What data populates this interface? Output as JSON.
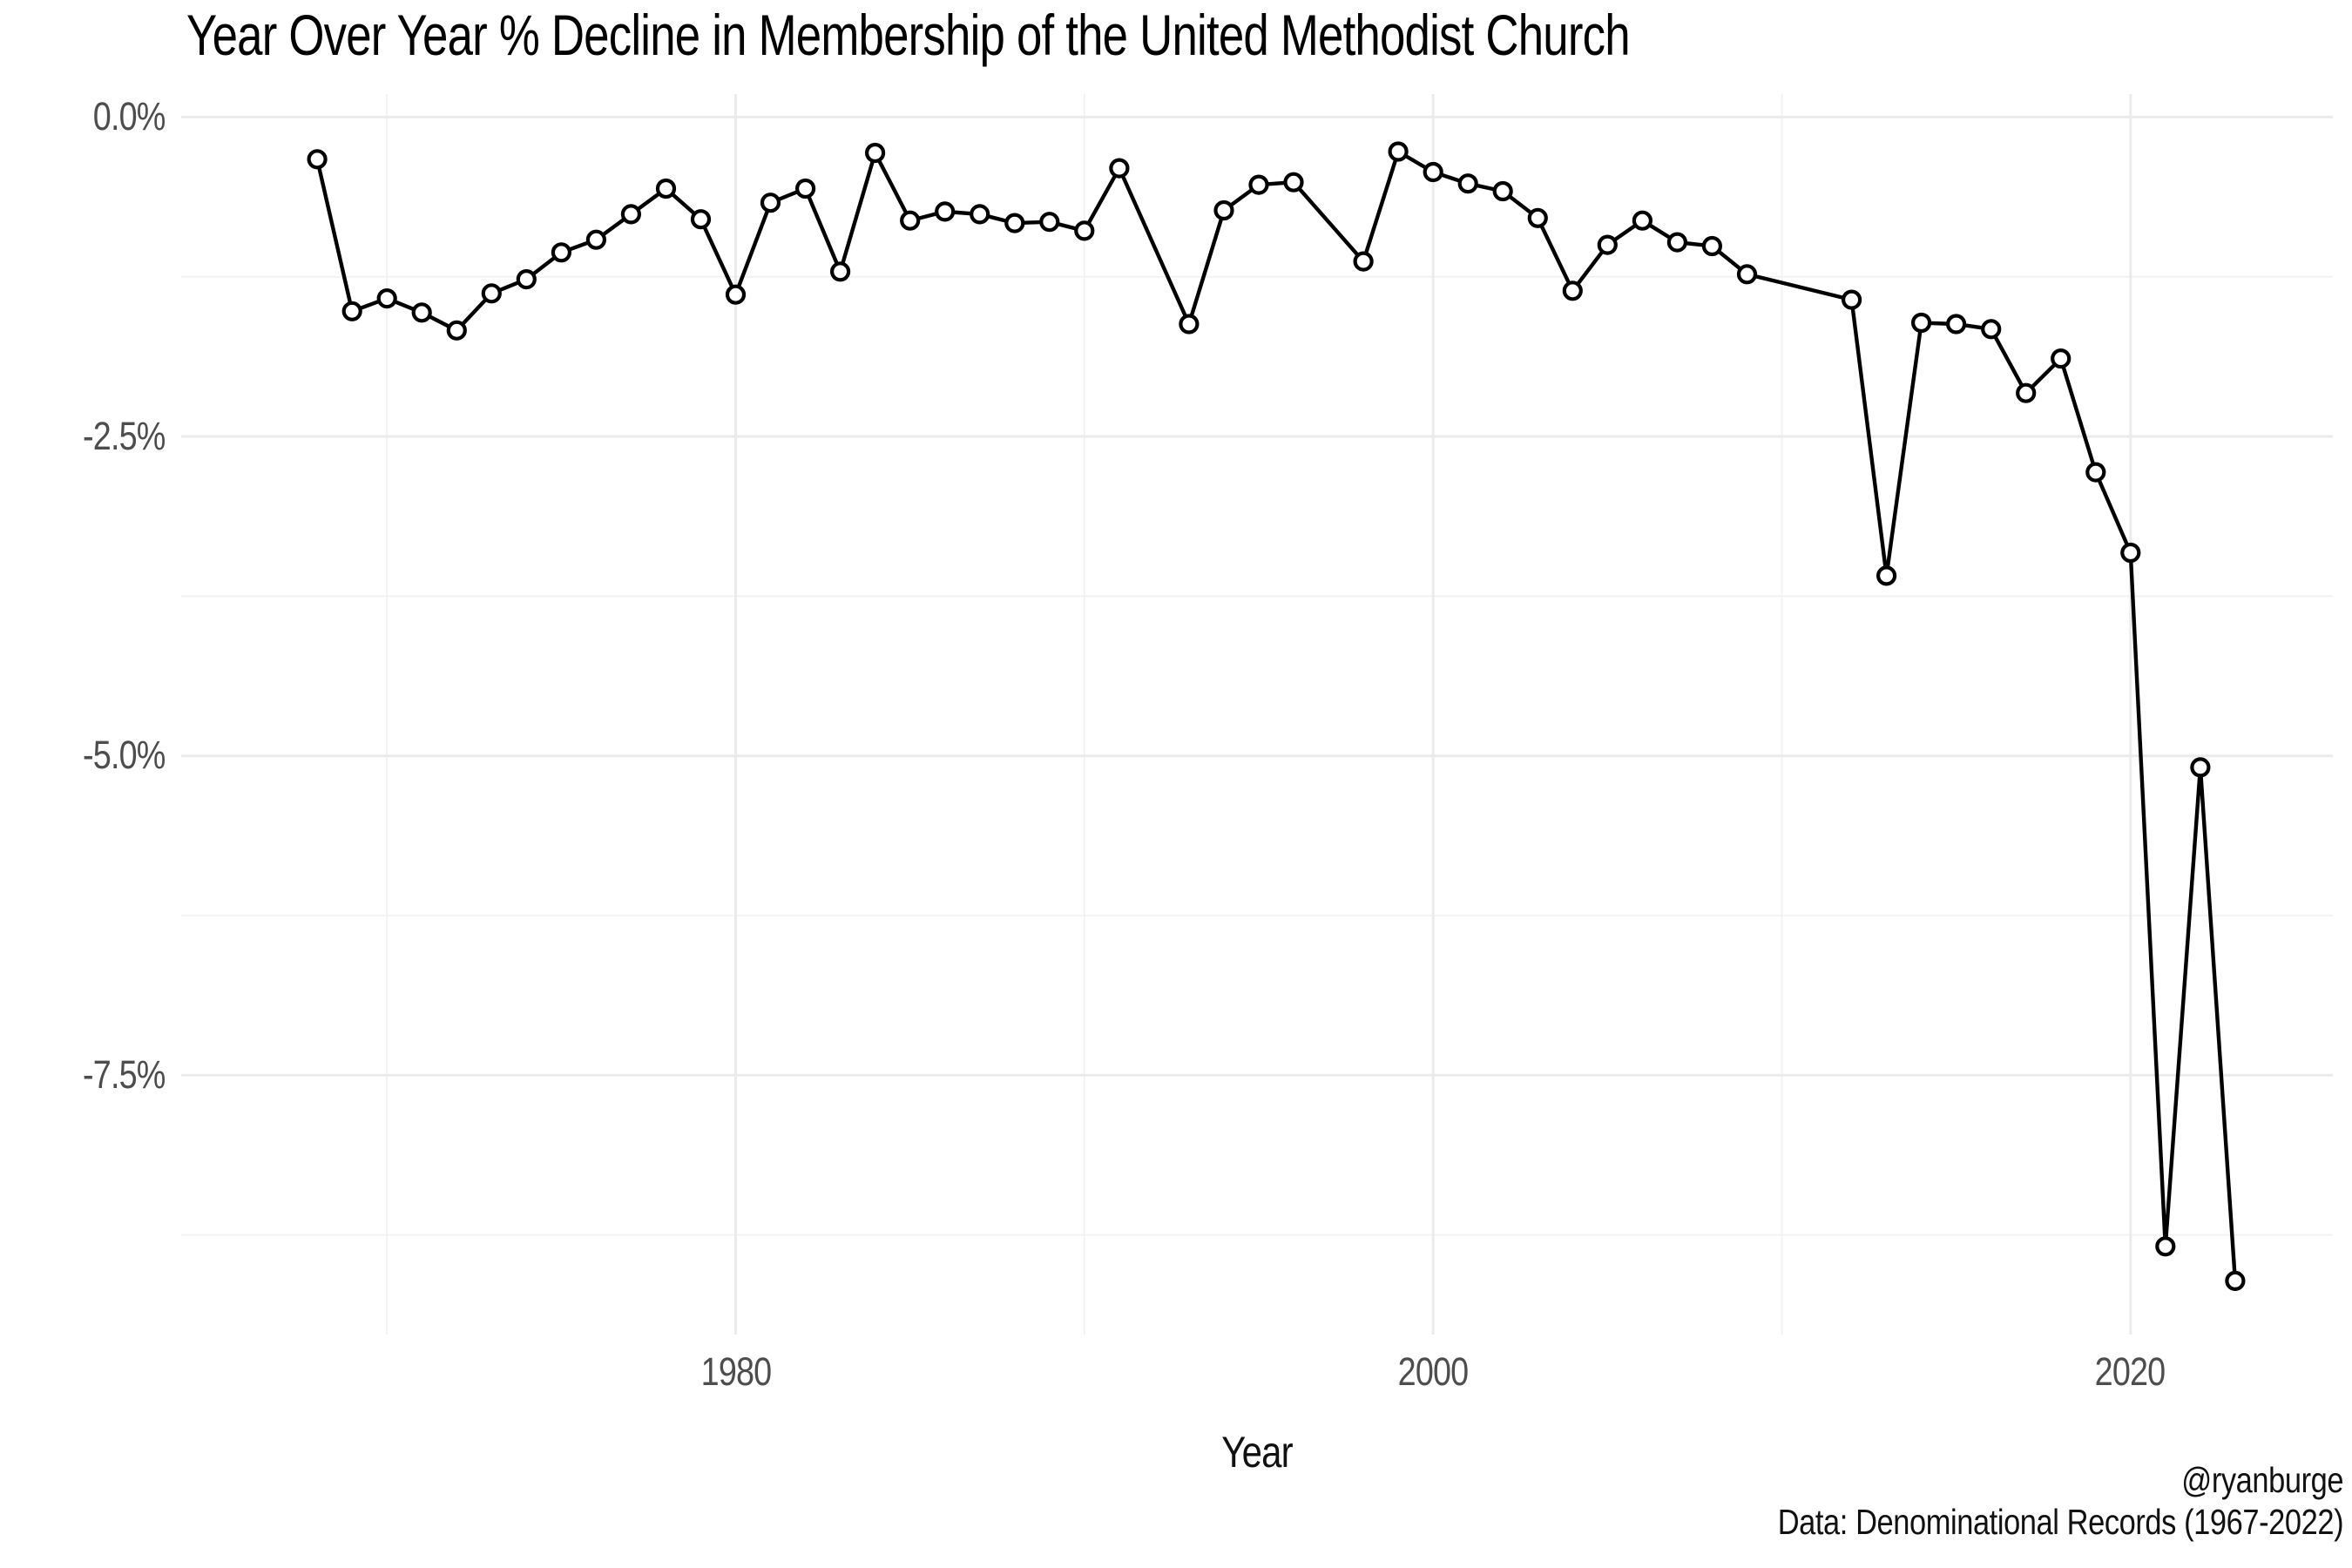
{
  "chart_data": {
    "type": "line",
    "title": "Year Over Year % Decline in Membership of the United Methodist Church",
    "x_axis": {
      "label": "Year",
      "tick_labels": [
        "1980",
        "2000",
        "2020"
      ],
      "tick_values": [
        1980,
        2000,
        2020
      ],
      "minor_tick_values": [
        1970,
        1990,
        2010
      ],
      "domain": [
        1964.1,
        2025.8
      ]
    },
    "y_axis": {
      "label": "",
      "tick_labels": [
        "0.0%",
        "-2.5%",
        "-5.0%",
        "-7.5%"
      ],
      "tick_values": [
        0,
        -2.5,
        -5.0,
        -7.5
      ],
      "minor_tick_values": [
        -1.25,
        -3.75,
        -6.25,
        -8.75
      ],
      "domain": [
        0.18,
        -9.53
      ]
    },
    "grid": "major+minor",
    "legend": false,
    "point_format": [
      "year",
      "yoy_percent_change"
    ],
    "series": [
      {
        "name": "United Methodist Church membership, year-over-year % change",
        "points": [
          [
            1968,
            -0.33
          ],
          [
            1969,
            -1.52
          ],
          [
            1970,
            -1.42
          ],
          [
            1971,
            -1.53
          ],
          [
            1972,
            -1.67
          ],
          [
            1973,
            -1.38
          ],
          [
            1974,
            -1.27
          ],
          [
            1975,
            -1.06
          ],
          [
            1976,
            -0.96
          ],
          [
            1977,
            -0.76
          ],
          [
            1978,
            -0.56
          ],
          [
            1979,
            -0.8
          ],
          [
            1980,
            -1.39
          ],
          [
            1981,
            -0.67
          ],
          [
            1982,
            -0.56
          ],
          [
            1983,
            -1.21
          ],
          [
            1984,
            -0.28
          ],
          [
            1985,
            -0.81
          ],
          [
            1986,
            -0.74
          ],
          [
            1987,
            -0.76
          ],
          [
            1988,
            -0.83
          ],
          [
            1989,
            -0.82
          ],
          [
            1990,
            -0.89
          ],
          [
            1991,
            -0.4
          ],
          [
            1993,
            -1.62
          ],
          [
            1994,
            -0.73
          ],
          [
            1995,
            -0.53
          ],
          [
            1996,
            -0.51
          ],
          [
            1998,
            -1.13
          ],
          [
            1999,
            -0.27
          ],
          [
            2000,
            -0.43
          ],
          [
            2001,
            -0.52
          ],
          [
            2002,
            -0.58
          ],
          [
            2003,
            -0.79
          ],
          [
            2004,
            -1.36
          ],
          [
            2005,
            -1.0
          ],
          [
            2006,
            -0.81
          ],
          [
            2007,
            -0.98
          ],
          [
            2008,
            -1.01
          ],
          [
            2009,
            -1.23
          ],
          [
            2012,
            -1.43
          ],
          [
            2013,
            -3.59
          ],
          [
            2014,
            -1.61
          ],
          [
            2015,
            -1.62
          ],
          [
            2016,
            -1.66
          ],
          [
            2017,
            -2.16
          ],
          [
            2018,
            -1.89
          ],
          [
            2019,
            -2.78
          ],
          [
            2020,
            -3.41
          ],
          [
            2021,
            -8.84
          ],
          [
            2022,
            -5.09
          ],
          [
            2023,
            -9.11
          ]
        ]
      }
    ],
    "missing_years": [
      1992,
      1997,
      2010,
      2011
    ],
    "caption_right": [
      "@ryanburge",
      "Data: Denominational Records (1967-2022)"
    ],
    "colors": {
      "line": "#000000",
      "marker_fill": "#ffffff",
      "grid_major": "#ebebeb",
      "grid_minor": "#f0f0f0",
      "tick_text": "#4d4d4d",
      "text": "#111111",
      "background": "#ffffff"
    }
  }
}
